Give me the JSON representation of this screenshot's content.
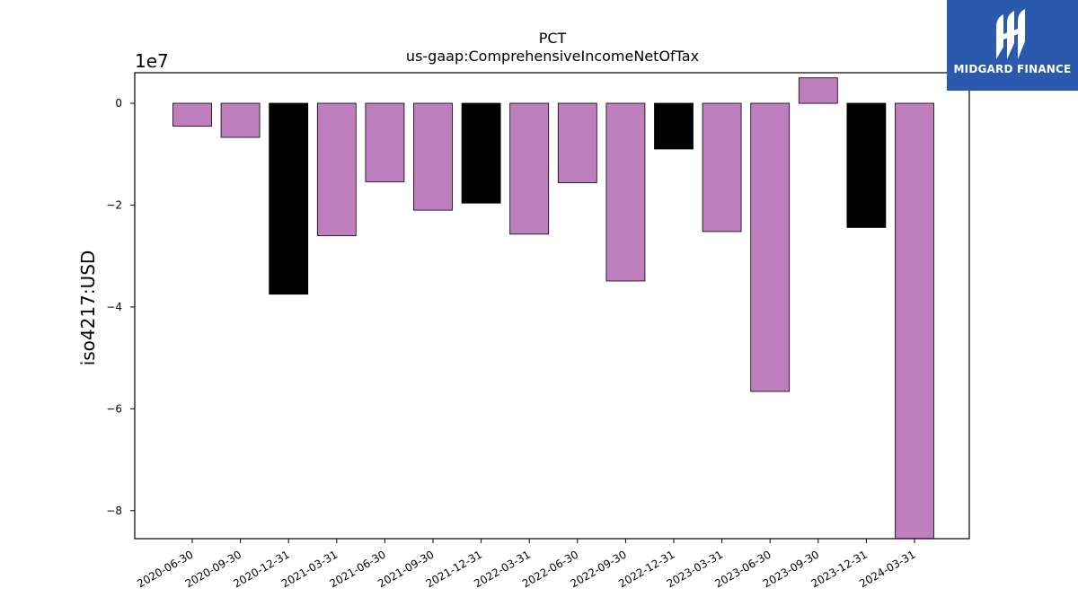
{
  "brand": {
    "name": "MIDGARD FINANCE",
    "background": "#2b59ad",
    "icon": "midgard-logo-icon"
  },
  "chart_data": {
    "type": "bar",
    "title": "PCT",
    "subtitle": "us-gaap:ComprehensiveIncomeNetOfTax",
    "xlabel": "",
    "ylabel": "iso4217:USD",
    "y_exponent_label": "1e7",
    "ylim": [
      -85500000,
      6000000
    ],
    "yticks": [
      0,
      -20000000,
      -40000000,
      -60000000,
      -80000000
    ],
    "ytick_labels": [
      "0",
      "−2",
      "−4",
      "−6",
      "−8"
    ],
    "grid": false,
    "categories": [
      "2020-06-30",
      "2020-09-30",
      "2020-12-31",
      "2021-03-31",
      "2021-06-30",
      "2021-09-30",
      "2021-12-31",
      "2022-03-31",
      "2022-06-30",
      "2022-09-30",
      "2022-12-31",
      "2023-03-31",
      "2023-06-30",
      "2023-09-30",
      "2023-12-31",
      "2024-03-31"
    ],
    "values": [
      -4500000,
      -6700000,
      -37500000,
      -26000000,
      -15400000,
      -21000000,
      -19600000,
      -25700000,
      -15600000,
      -34900000,
      -9000000,
      -25200000,
      -56600000,
      5000000,
      -24400000,
      -85500000
    ],
    "bar_colors": [
      "#bf7fbf",
      "#bf7fbf",
      "#000000",
      "#bf7fbf",
      "#bf7fbf",
      "#bf7fbf",
      "#000000",
      "#bf7fbf",
      "#bf7fbf",
      "#bf7fbf",
      "#000000",
      "#bf7fbf",
      "#bf7fbf",
      "#bf7fbf",
      "#000000",
      "#bf7fbf"
    ]
  }
}
